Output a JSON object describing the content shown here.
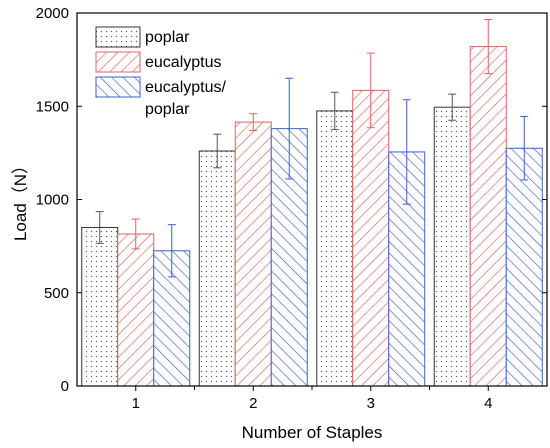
{
  "chart_data": {
    "type": "bar",
    "title": "",
    "xlabel": "Number of Staples",
    "ylabel": "Load（N）",
    "categories": [
      "1",
      "2",
      "3",
      "4"
    ],
    "ylim": [
      0,
      2000
    ],
    "yticks": [
      "0",
      "500",
      "1000",
      "1500",
      "2000"
    ],
    "grid": false,
    "legend_position": "top-left",
    "series": [
      {
        "name": "poplar",
        "color": "#000000",
        "pattern": "dots",
        "values": [
          850,
          1260,
          1475,
          1495
        ],
        "errors": [
          85,
          90,
          100,
          70
        ]
      },
      {
        "name": "eucalyptus",
        "color": "#e06060",
        "pattern": "diagonal-forward",
        "values": [
          815,
          1415,
          1585,
          1820
        ],
        "errors": [
          80,
          45,
          200,
          145
        ]
      },
      {
        "name": "eucalyptus/\npoplar",
        "color": "#3a5fd0",
        "pattern": "diagonal-back",
        "values": [
          725,
          1380,
          1255,
          1275
        ],
        "errors": [
          140,
          270,
          280,
          170
        ]
      }
    ]
  }
}
